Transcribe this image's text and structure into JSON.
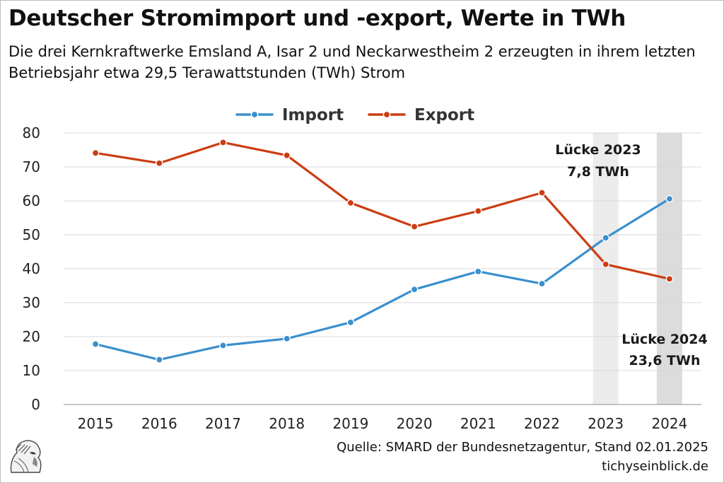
{
  "title": "Deutscher Stromimport und -export, Werte in TWh",
  "subtitle": "Die drei Kernkraftwerke Emsland A, Isar 2 und Neckarwestheim 2 erzeugten in ihrem letzten Betriebsjahr etwa 29,5 Terawattstunden (TWh) Strom",
  "source": "Quelle: SMARD der Bundesnetzagentur, Stand 02.01.2025",
  "site": "tichyseinblick.de",
  "colors": {
    "import": "#3a8fcd",
    "export": "#cc3d12",
    "gap_band": "#e3e3e3",
    "grid": "#d9d9d9"
  },
  "chart_data": {
    "type": "line",
    "categories": [
      "2015",
      "2016",
      "2017",
      "2018",
      "2019",
      "2020",
      "2021",
      "2022",
      "2023",
      "2024"
    ],
    "series": [
      {
        "name": "Import",
        "values": [
          17.8,
          13.2,
          17.4,
          19.4,
          24.2,
          33.9,
          39.2,
          35.6,
          49.1,
          60.6
        ]
      },
      {
        "name": "Export",
        "values": [
          74.1,
          71.1,
          77.2,
          73.4,
          59.4,
          52.4,
          57.0,
          62.4,
          41.3,
          37.0
        ]
      }
    ],
    "ylim": [
      0,
      80
    ],
    "yticks": [
      0,
      10,
      20,
      30,
      40,
      50,
      60,
      70,
      80
    ],
    "grid": true,
    "legend_position": "top-center",
    "annotations": [
      {
        "category": "2023",
        "line1": "Lücke 2023",
        "line2": "7,8 TWh"
      },
      {
        "category": "2024",
        "line1": "Lücke 2024",
        "line2": "23,6 TWh"
      }
    ]
  }
}
